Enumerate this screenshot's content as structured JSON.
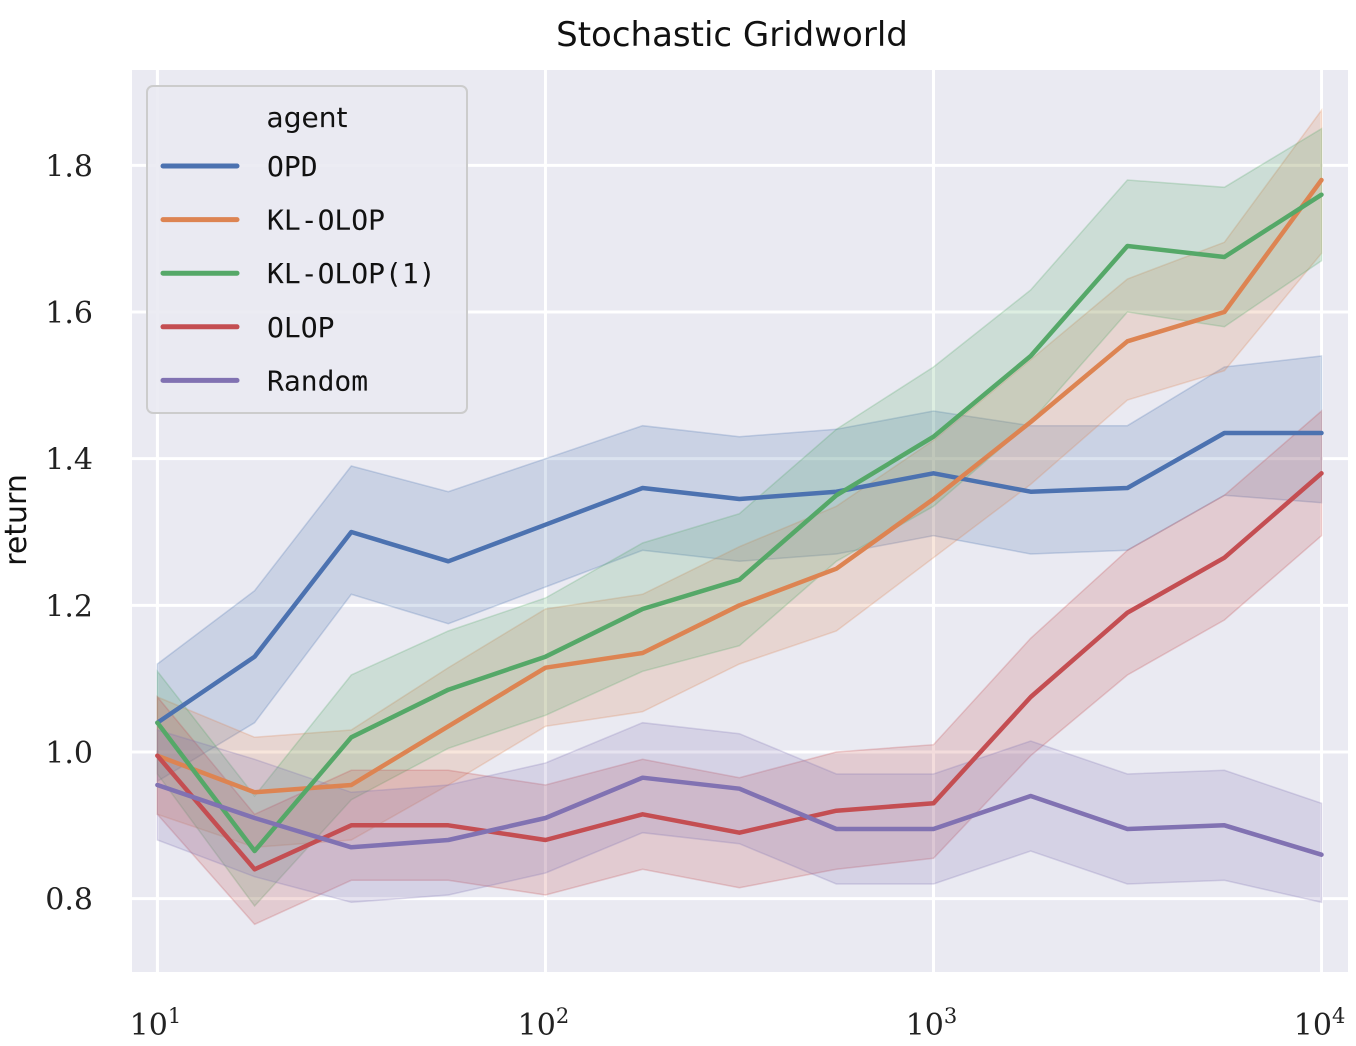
{
  "chart_data": {
    "type": "line",
    "title": "Stochastic Gridworld",
    "xlabel": "",
    "ylabel": "return",
    "xscale": "log",
    "xlim": [
      8.6,
      11700
    ],
    "ylim": [
      0.7,
      1.93
    ],
    "grid": true,
    "legend": {
      "title": "agent",
      "placement": "top-left"
    },
    "x_ticks": [
      {
        "value": 10,
        "base": "10",
        "exp": "1"
      },
      {
        "value": 100,
        "base": "10",
        "exp": "2"
      },
      {
        "value": 1000,
        "base": "10",
        "exp": "3"
      },
      {
        "value": 10000,
        "base": "10",
        "exp": "4"
      }
    ],
    "y_ticks": [
      {
        "value": 0.8,
        "label": "0.8"
      },
      {
        "value": 1.0,
        "label": "1.0"
      },
      {
        "value": 1.2,
        "label": "1.2"
      },
      {
        "value": 1.4,
        "label": "1.4"
      },
      {
        "value": 1.6,
        "label": "1.6"
      },
      {
        "value": 1.8,
        "label": "1.8"
      }
    ],
    "x": [
      10,
      17.8,
      31.6,
      56.2,
      100,
      178,
      316,
      562,
      1000,
      1780,
      3160,
      5620,
      10000
    ],
    "series": [
      {
        "name": "OPD",
        "color": "#4c72b0",
        "values": [
          1.04,
          1.13,
          1.3,
          1.26,
          1.31,
          1.36,
          1.345,
          1.355,
          1.38,
          1.355,
          1.36,
          1.435,
          1.435
        ],
        "lower": [
          0.96,
          1.04,
          1.215,
          1.175,
          1.225,
          1.275,
          1.26,
          1.27,
          1.295,
          1.27,
          1.275,
          1.35,
          1.34
        ],
        "upper": [
          1.12,
          1.22,
          1.39,
          1.355,
          1.4,
          1.445,
          1.43,
          1.44,
          1.465,
          1.445,
          1.445,
          1.525,
          1.54
        ]
      },
      {
        "name": "KL-OLOP",
        "color": "#dd8452",
        "values": [
          0.995,
          0.945,
          0.955,
          1.035,
          1.115,
          1.135,
          1.2,
          1.25,
          1.345,
          1.45,
          1.56,
          1.6,
          1.78
        ],
        "lower": [
          0.915,
          0.87,
          0.88,
          0.955,
          1.035,
          1.055,
          1.12,
          1.165,
          1.265,
          1.365,
          1.48,
          1.52,
          1.68
        ],
        "upper": [
          1.075,
          1.02,
          1.03,
          1.115,
          1.195,
          1.215,
          1.28,
          1.335,
          1.425,
          1.535,
          1.645,
          1.695,
          1.875
        ]
      },
      {
        "name": "KL-OLOP(1)",
        "color": "#55a868",
        "values": [
          1.04,
          0.865,
          1.02,
          1.085,
          1.13,
          1.195,
          1.235,
          1.35,
          1.43,
          1.54,
          1.69,
          1.675,
          1.76
        ],
        "lower": [
          0.97,
          0.79,
          0.935,
          1.005,
          1.05,
          1.11,
          1.145,
          1.26,
          1.335,
          1.45,
          1.6,
          1.58,
          1.67
        ],
        "upper": [
          1.11,
          0.94,
          1.105,
          1.165,
          1.21,
          1.285,
          1.325,
          1.44,
          1.525,
          1.63,
          1.78,
          1.77,
          1.85
        ]
      },
      {
        "name": "OLOP",
        "color": "#c44e52",
        "values": [
          0.995,
          0.84,
          0.9,
          0.9,
          0.88,
          0.915,
          0.89,
          0.92,
          0.93,
          1.075,
          1.19,
          1.265,
          1.38
        ],
        "lower": [
          0.915,
          0.765,
          0.825,
          0.825,
          0.805,
          0.84,
          0.815,
          0.84,
          0.855,
          0.995,
          1.105,
          1.18,
          1.295
        ],
        "upper": [
          1.075,
          0.915,
          0.975,
          0.975,
          0.955,
          0.99,
          0.965,
          1.0,
          1.01,
          1.155,
          1.275,
          1.35,
          1.465
        ]
      },
      {
        "name": "Random",
        "color": "#8172b2",
        "values": [
          0.955,
          0.91,
          0.87,
          0.88,
          0.91,
          0.965,
          0.95,
          0.895,
          0.895,
          0.94,
          0.895,
          0.9,
          0.86
        ],
        "lower": [
          0.88,
          0.83,
          0.795,
          0.805,
          0.835,
          0.89,
          0.875,
          0.82,
          0.82,
          0.865,
          0.82,
          0.825,
          0.795
        ],
        "upper": [
          1.03,
          0.99,
          0.945,
          0.955,
          0.985,
          1.04,
          1.025,
          0.97,
          0.97,
          1.015,
          0.97,
          0.975,
          0.93
        ]
      }
    ]
  }
}
